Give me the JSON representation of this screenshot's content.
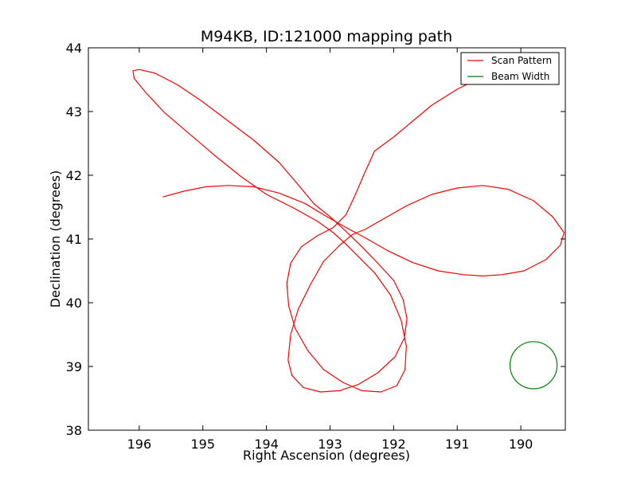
{
  "chart_data": {
    "type": "line",
    "title": "M94KB, ID:121000 mapping path",
    "xlabel": "Right Ascension (degrees)",
    "ylabel": "Declination (degrees)",
    "xlim": [
      196.8,
      189.3
    ],
    "ylim": [
      38,
      44
    ],
    "x_reversed": true,
    "xticks": [
      196,
      195,
      194,
      193,
      192,
      191,
      190
    ],
    "yticks": [
      38,
      39,
      40,
      41,
      42,
      43,
      44
    ],
    "grid": false,
    "legend_placement": "top-right",
    "series": [
      {
        "name": "Scan Pattern",
        "color": "#ff0000",
        "x": [
          195.63,
          195.3,
          194.95,
          194.6,
          194.2,
          193.8,
          193.4,
          193.05,
          192.75,
          192.45,
          192.1,
          191.7,
          191.3,
          190.9,
          190.6,
          190.3,
          189.95,
          189.6,
          189.38,
          189.32,
          189.5,
          189.8,
          190.2,
          190.6,
          191.0,
          191.4,
          191.8,
          192.15,
          192.45,
          192.65,
          192.85,
          193.1,
          193.3,
          193.5,
          193.62,
          193.66,
          193.6,
          193.42,
          193.15,
          192.85,
          192.55,
          192.25,
          191.98,
          191.83,
          191.79,
          191.85,
          192.0,
          192.25,
          192.5,
          192.75,
          193.0,
          193.25,
          193.5,
          193.8,
          194.2,
          194.6,
          195.0,
          195.4,
          195.75,
          196.0,
          196.1,
          196.08,
          195.9,
          195.6,
          195.2,
          194.8,
          194.4,
          194.0,
          193.6,
          193.2,
          192.95,
          192.75,
          192.55,
          192.3,
          192.05,
          191.88,
          191.8,
          191.82,
          191.95,
          192.2,
          192.5,
          192.8,
          193.1,
          193.35,
          193.55,
          193.65,
          193.68,
          193.62,
          193.45,
          193.2,
          192.95,
          192.75,
          192.6,
          192.45,
          192.3,
          192.0,
          191.7,
          191.4,
          191.0,
          190.6,
          190.2,
          189.85
        ],
        "y": [
          41.66,
          41.75,
          41.82,
          41.84,
          41.82,
          41.72,
          41.56,
          41.35,
          41.18,
          41.02,
          40.82,
          40.63,
          40.5,
          40.44,
          40.42,
          40.44,
          40.5,
          40.68,
          40.9,
          41.1,
          41.35,
          41.6,
          41.78,
          41.84,
          41.8,
          41.7,
          41.52,
          41.32,
          41.15,
          41.07,
          40.9,
          40.65,
          40.3,
          39.9,
          39.5,
          39.1,
          38.86,
          38.67,
          38.6,
          38.62,
          38.72,
          38.9,
          39.15,
          39.45,
          39.75,
          40.05,
          40.35,
          40.62,
          40.88,
          41.12,
          41.35,
          41.55,
          41.85,
          42.2,
          42.55,
          42.85,
          43.15,
          43.42,
          43.6,
          43.66,
          43.64,
          43.52,
          43.3,
          42.98,
          42.64,
          42.3,
          41.98,
          41.7,
          41.5,
          41.28,
          41.1,
          40.92,
          40.72,
          40.47,
          40.12,
          39.72,
          39.32,
          38.95,
          38.7,
          38.6,
          38.62,
          38.75,
          38.95,
          39.25,
          39.6,
          39.95,
          40.3,
          40.62,
          40.88,
          41.05,
          41.18,
          41.38,
          41.7,
          42.05,
          42.38,
          42.6,
          42.85,
          43.1,
          43.35,
          43.55,
          43.65,
          43.64
        ]
      },
      {
        "name": "Beam Width",
        "color": "#008000",
        "shape": "circle",
        "center": [
          189.8,
          39.02
        ],
        "radius": 0.37
      }
    ],
    "legend": [
      {
        "label": "Scan Pattern",
        "color": "#ff0000"
      },
      {
        "label": "Beam Width",
        "color": "#008000"
      }
    ]
  }
}
